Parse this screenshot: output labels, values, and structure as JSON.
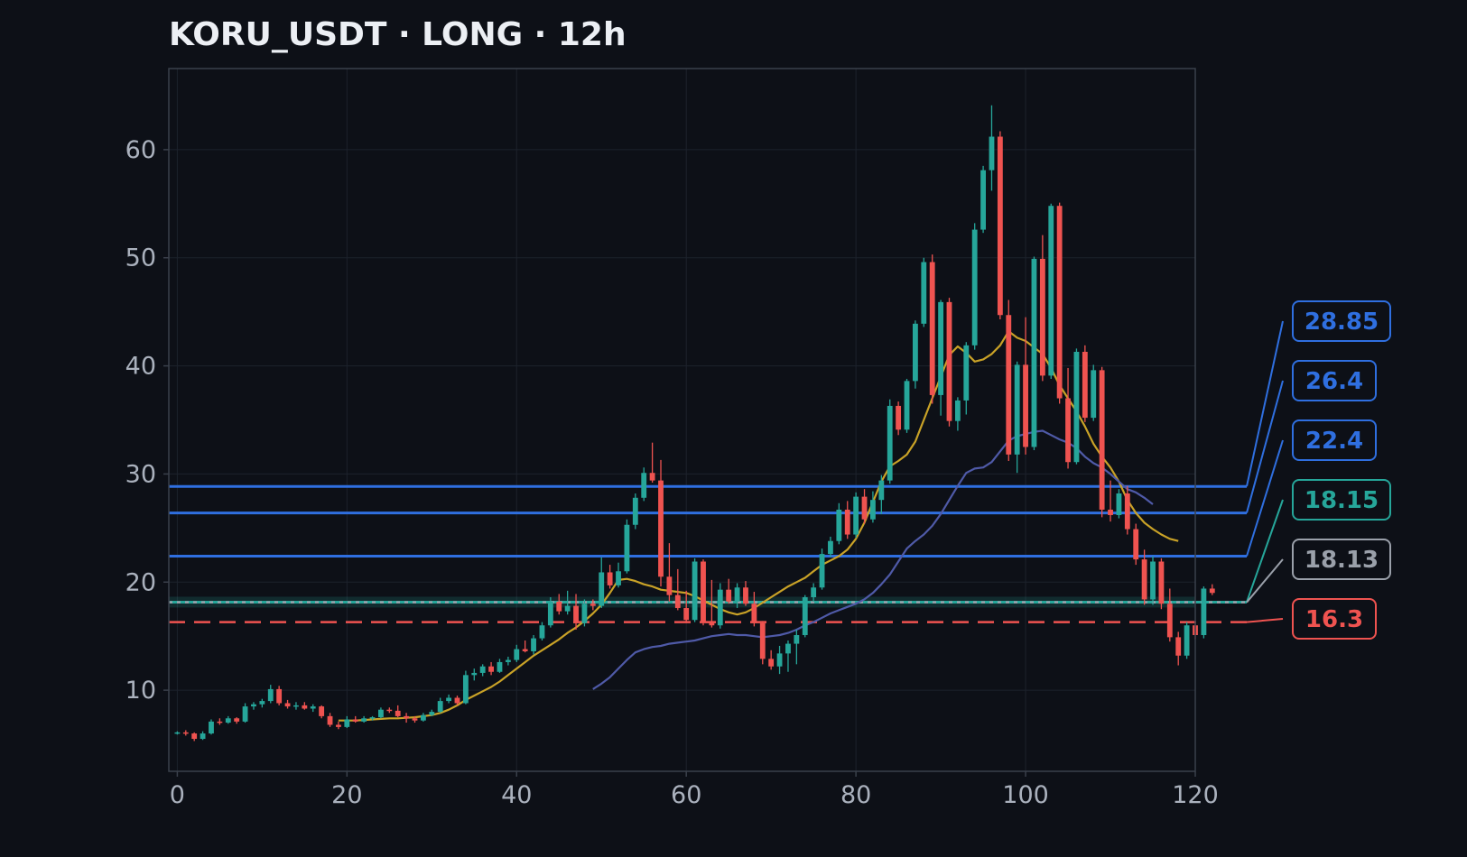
{
  "title": "KORU_USDT · LONG · 12h",
  "colors": {
    "background": "#0d1017",
    "grid": "#1d222c",
    "axis": "#3a404b",
    "up": "#26a69a",
    "down": "#ef5350",
    "ma_fast": "#c9a227",
    "ma_slow": "#4f5aa8",
    "target": "#2f6fe0",
    "entry": "#26a69a",
    "current": "#9aa0aa",
    "stop": "#ef5350"
  },
  "chart_data": {
    "type": "candlestick",
    "xlim": [
      -1,
      120
    ],
    "ylim": [
      2.5,
      67.5
    ],
    "x_ticks": [
      0,
      20,
      40,
      60,
      80,
      100,
      120
    ],
    "y_ticks": [
      10,
      20,
      30,
      40,
      50,
      60
    ],
    "grid": true,
    "candles": [
      [
        6.0,
        6.2,
        5.9,
        6.1
      ],
      [
        6.1,
        6.3,
        5.8,
        6.0
      ],
      [
        6.0,
        6.1,
        5.3,
        5.5
      ],
      [
        5.5,
        6.2,
        5.4,
        6.0
      ],
      [
        6.0,
        7.3,
        5.9,
        7.1
      ],
      [
        7.1,
        7.4,
        6.8,
        7.0
      ],
      [
        7.0,
        7.6,
        6.9,
        7.4
      ],
      [
        7.4,
        7.5,
        6.9,
        7.1
      ],
      [
        7.1,
        8.8,
        7.0,
        8.5
      ],
      [
        8.5,
        8.9,
        8.2,
        8.7
      ],
      [
        8.7,
        9.2,
        8.4,
        9.0
      ],
      [
        9.0,
        10.5,
        8.8,
        10.1
      ],
      [
        10.1,
        10.4,
        8.6,
        8.8
      ],
      [
        8.8,
        9.1,
        8.3,
        8.5
      ],
      [
        8.5,
        8.9,
        8.2,
        8.6
      ],
      [
        8.6,
        8.9,
        8.2,
        8.3
      ],
      [
        8.3,
        8.7,
        8.0,
        8.5
      ],
      [
        8.5,
        8.6,
        7.4,
        7.6
      ],
      [
        7.6,
        7.9,
        6.6,
        6.8
      ],
      [
        6.8,
        7.1,
        6.4,
        6.6
      ],
      [
        6.6,
        7.6,
        6.5,
        7.3
      ],
      [
        7.3,
        7.6,
        7.0,
        7.1
      ],
      [
        7.1,
        7.6,
        7.0,
        7.4
      ],
      [
        7.4,
        7.6,
        7.2,
        7.5
      ],
      [
        7.5,
        8.4,
        7.4,
        8.2
      ],
      [
        8.2,
        8.4,
        7.9,
        8.1
      ],
      [
        8.1,
        8.6,
        7.5,
        7.6
      ],
      [
        7.6,
        7.9,
        7.0,
        7.4
      ],
      [
        7.4,
        7.6,
        7.0,
        7.2
      ],
      [
        7.2,
        7.9,
        7.1,
        7.7
      ],
      [
        7.7,
        8.2,
        7.6,
        8.0
      ],
      [
        8.0,
        9.3,
        7.9,
        9.0
      ],
      [
        9.0,
        9.6,
        8.8,
        9.3
      ],
      [
        9.3,
        9.5,
        8.6,
        8.8
      ],
      [
        8.8,
        11.8,
        8.7,
        11.4
      ],
      [
        11.4,
        12.0,
        10.9,
        11.6
      ],
      [
        11.6,
        12.4,
        11.3,
        12.2
      ],
      [
        12.2,
        12.6,
        11.4,
        11.7
      ],
      [
        11.7,
        12.9,
        11.6,
        12.6
      ],
      [
        12.6,
        13.1,
        12.3,
        12.8
      ],
      [
        12.8,
        14.2,
        12.6,
        13.8
      ],
      [
        13.8,
        14.6,
        13.5,
        13.6
      ],
      [
        13.6,
        15.1,
        13.3,
        14.8
      ],
      [
        14.8,
        16.3,
        14.6,
        16.0
      ],
      [
        16.0,
        18.6,
        15.8,
        18.2
      ],
      [
        18.2,
        18.9,
        17.0,
        17.3
      ],
      [
        17.3,
        19.2,
        17.0,
        17.8
      ],
      [
        17.8,
        18.9,
        15.6,
        16.2
      ],
      [
        16.2,
        18.4,
        15.9,
        18.0
      ],
      [
        18.0,
        18.4,
        17.4,
        17.8
      ],
      [
        17.8,
        22.3,
        17.6,
        20.9
      ],
      [
        20.9,
        21.6,
        19.4,
        19.7
      ],
      [
        19.7,
        21.8,
        19.5,
        21.0
      ],
      [
        21.0,
        25.8,
        20.8,
        25.3
      ],
      [
        25.3,
        28.2,
        24.9,
        27.8
      ],
      [
        27.8,
        30.6,
        27.5,
        30.1
      ],
      [
        30.1,
        32.9,
        29.2,
        29.4
      ],
      [
        29.4,
        31.3,
        19.6,
        20.5
      ],
      [
        20.5,
        23.6,
        18.2,
        18.8
      ],
      [
        18.8,
        21.2,
        17.4,
        17.6
      ],
      [
        17.6,
        19.2,
        16.2,
        16.5
      ],
      [
        16.5,
        22.2,
        16.3,
        21.9
      ],
      [
        21.9,
        22.1,
        16.0,
        16.3
      ],
      [
        16.3,
        20.2,
        15.8,
        16.0
      ],
      [
        16.0,
        19.9,
        15.7,
        19.3
      ],
      [
        19.3,
        20.3,
        18.0,
        18.2
      ],
      [
        18.2,
        19.9,
        17.6,
        19.5
      ],
      [
        19.5,
        20.1,
        17.8,
        18.0
      ],
      [
        18.0,
        19.1,
        15.9,
        16.2
      ],
      [
        16.2,
        16.4,
        12.4,
        12.9
      ],
      [
        12.9,
        13.7,
        11.9,
        12.2
      ],
      [
        12.2,
        14.1,
        11.5,
        13.4
      ],
      [
        13.4,
        14.6,
        11.7,
        14.3
      ],
      [
        14.3,
        15.6,
        12.4,
        15.1
      ],
      [
        15.1,
        18.8,
        14.9,
        18.6
      ],
      [
        18.6,
        19.9,
        18.2,
        19.5
      ],
      [
        19.5,
        23.1,
        19.3,
        22.6
      ],
      [
        22.6,
        24.2,
        22.3,
        23.8
      ],
      [
        23.8,
        27.3,
        23.5,
        26.7
      ],
      [
        26.7,
        27.5,
        24.0,
        24.4
      ],
      [
        24.4,
        28.3,
        24.1,
        27.9
      ],
      [
        27.9,
        28.6,
        25.4,
        25.8
      ],
      [
        25.8,
        28.4,
        25.5,
        27.6
      ],
      [
        27.6,
        29.9,
        26.3,
        29.4
      ],
      [
        29.4,
        36.9,
        29.1,
        36.3
      ],
      [
        36.3,
        36.7,
        33.6,
        34.1
      ],
      [
        34.1,
        38.8,
        33.8,
        38.6
      ],
      [
        38.6,
        44.2,
        37.9,
        43.9
      ],
      [
        43.9,
        50.0,
        43.6,
        49.6
      ],
      [
        49.6,
        50.3,
        36.5,
        37.3
      ],
      [
        37.3,
        46.1,
        35.4,
        45.9
      ],
      [
        45.9,
        46.3,
        34.4,
        34.9
      ],
      [
        34.9,
        37.1,
        34.0,
        36.8
      ],
      [
        36.8,
        42.2,
        35.5,
        41.9
      ],
      [
        41.9,
        53.2,
        41.5,
        52.6
      ],
      [
        52.6,
        58.5,
        52.3,
        58.1
      ],
      [
        58.1,
        64.1,
        56.2,
        61.2
      ],
      [
        61.2,
        61.7,
        44.3,
        44.7
      ],
      [
        44.7,
        46.1,
        31.2,
        31.8
      ],
      [
        31.8,
        40.4,
        30.1,
        40.1
      ],
      [
        40.1,
        44.5,
        31.8,
        32.5
      ],
      [
        32.5,
        50.1,
        32.2,
        49.9
      ],
      [
        49.9,
        52.1,
        38.6,
        39.1
      ],
      [
        39.1,
        55.0,
        38.8,
        54.8
      ],
      [
        54.8,
        55.1,
        36.5,
        37.0
      ],
      [
        37.0,
        39.8,
        30.5,
        31.1
      ],
      [
        31.1,
        41.6,
        30.9,
        41.3
      ],
      [
        41.3,
        41.9,
        34.8,
        35.2
      ],
      [
        35.2,
        40.1,
        34.9,
        39.6
      ],
      [
        39.6,
        39.9,
        26.0,
        26.7
      ],
      [
        26.7,
        29.4,
        25.6,
        26.2
      ],
      [
        26.2,
        28.6,
        25.9,
        28.2
      ],
      [
        28.2,
        28.9,
        24.4,
        24.9
      ],
      [
        24.9,
        25.4,
        21.6,
        22.1
      ],
      [
        22.1,
        23.0,
        17.9,
        18.4
      ],
      [
        18.4,
        22.4,
        17.9,
        21.9
      ],
      [
        21.9,
        22.2,
        17.5,
        18.0
      ],
      [
        18.0,
        19.4,
        14.5,
        14.9
      ],
      [
        14.9,
        15.4,
        12.3,
        13.2
      ],
      [
        13.2,
        16.3,
        12.9,
        16.0
      ],
      [
        16.0,
        16.3,
        14.7,
        15.1
      ],
      [
        15.1,
        19.6,
        14.8,
        19.4
      ],
      [
        19.4,
        19.8,
        18.8,
        19.0
      ]
    ],
    "series": [
      {
        "name": "",
        "color_key": "ma_fast",
        "start": 19,
        "values": [
          7.2,
          7.2,
          7.2,
          7.25,
          7.3,
          7.35,
          7.4,
          7.4,
          7.45,
          7.5,
          7.6,
          7.7,
          7.9,
          8.2,
          8.6,
          9.1,
          9.5,
          9.9,
          10.3,
          10.8,
          11.4,
          12.0,
          12.6,
          13.2,
          13.7,
          14.2,
          14.7,
          15.3,
          15.8,
          16.4,
          17.1,
          17.9,
          19.0,
          20.2,
          20.3,
          20.1,
          19.8,
          19.6,
          19.3,
          19.2,
          19.1,
          19.0,
          18.7,
          18.3,
          17.9,
          17.5,
          17.2,
          17.0,
          17.2,
          17.6,
          18.1,
          18.6,
          19.1,
          19.6,
          20.0,
          20.4,
          21.0,
          21.6,
          22.0,
          22.4,
          23.0,
          24.0,
          25.5,
          27.4,
          29.3,
          30.7,
          31.2,
          31.8,
          33.0,
          35.0,
          37.0,
          39.0,
          41.0,
          41.8,
          41.2,
          40.4,
          40.6,
          41.1,
          41.9,
          43.2,
          42.6,
          42.3,
          41.7,
          41.1,
          39.8,
          38.2,
          37.0,
          35.8,
          34.4,
          32.8,
          31.6,
          30.6,
          29.3,
          27.6,
          26.4,
          25.5,
          24.9,
          24.4,
          24.0,
          23.8
        ]
      },
      {
        "name": "",
        "color_key": "ma_slow",
        "start": 49,
        "values": [
          10.1,
          10.6,
          11.2,
          12.0,
          12.8,
          13.5,
          13.8,
          14.0,
          14.1,
          14.3,
          14.4,
          14.5,
          14.6,
          14.8,
          15.0,
          15.1,
          15.2,
          15.1,
          15.1,
          15.0,
          14.9,
          15.0,
          15.1,
          15.3,
          15.6,
          16.0,
          16.3,
          16.7,
          17.1,
          17.4,
          17.7,
          18.0,
          18.4,
          19.0,
          19.8,
          20.7,
          21.9,
          23.1,
          23.8,
          24.4,
          25.2,
          26.3,
          27.6,
          28.9,
          30.1,
          30.5,
          30.6,
          31.1,
          32.1,
          33.1,
          33.5,
          33.7,
          33.9,
          34.0,
          33.6,
          33.2,
          32.9,
          32.4,
          31.6,
          31.0,
          30.6,
          30.0,
          29.3,
          28.6,
          28.3,
          27.8,
          27.2
        ]
      }
    ],
    "levels": [
      {
        "label": "28.85",
        "value": 28.85,
        "color_key": "target",
        "style": "solid"
      },
      {
        "label": "26.4",
        "value": 26.4,
        "color_key": "target",
        "style": "solid"
      },
      {
        "label": "22.4",
        "value": 22.4,
        "color_key": "target",
        "style": "solid"
      },
      {
        "label": "18.15",
        "value": 18.15,
        "color_key": "entry",
        "style": "solid"
      },
      {
        "label": "18.13",
        "value": 18.13,
        "color_key": "current",
        "style": "dotted"
      },
      {
        "label": "16.3",
        "value": 16.3,
        "color_key": "stop",
        "style": "dashed"
      }
    ]
  }
}
